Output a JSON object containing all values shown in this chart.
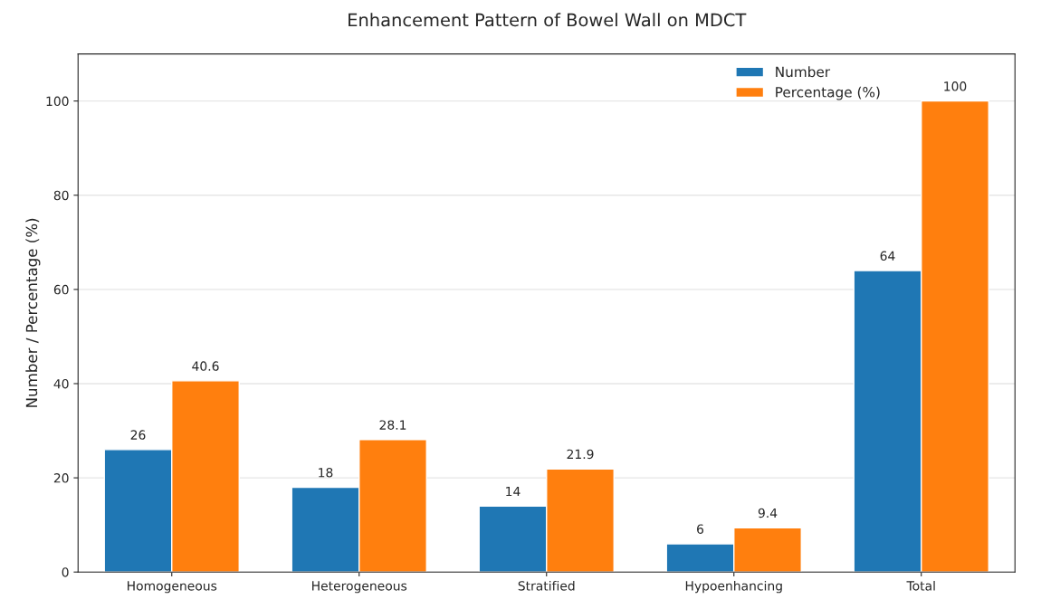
{
  "chart_data": {
    "type": "bar",
    "title": "Enhancement Pattern of Bowel Wall on MDCT",
    "ylabel": "Number / Percentage (%)",
    "categories": [
      "Homogeneous",
      "Heterogeneous",
      "Stratified",
      "Hypoenhancing",
      "Total"
    ],
    "series": [
      {
        "name": "Number",
        "color": "#1f77b4",
        "values": [
          26,
          18,
          14,
          6,
          64
        ]
      },
      {
        "name": "Percentage (%)",
        "color": "#ff7f0e",
        "values": [
          40.6,
          28.1,
          21.9,
          9.4,
          100
        ]
      }
    ],
    "ylim": [
      0,
      110
    ],
    "yticks": [
      0,
      20,
      40,
      60,
      80,
      100
    ],
    "grid": "y",
    "legend": "top right",
    "data_labels": true
  }
}
